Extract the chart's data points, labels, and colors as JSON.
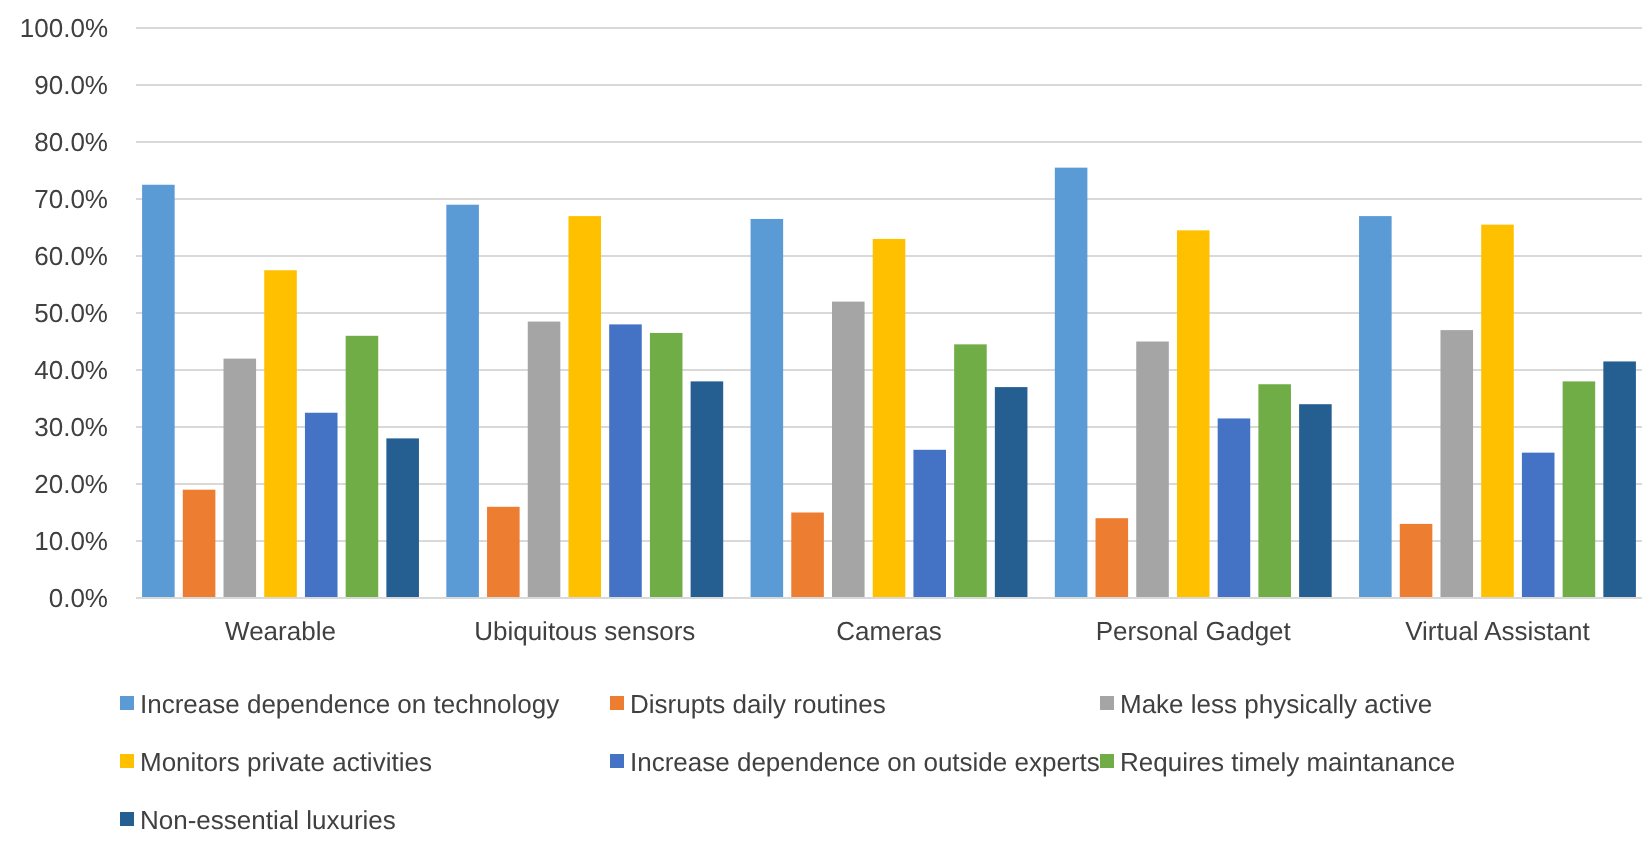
{
  "chart_data": {
    "type": "bar",
    "categories": [
      "Wearable",
      "Ubiquitous sensors",
      "Cameras",
      "Personal Gadget",
      "Virtual Assistant"
    ],
    "series": [
      {
        "name": "Increase dependence on technology",
        "color": "#5b9bd5",
        "values": [
          72.5,
          69,
          66.5,
          75.5,
          67
        ]
      },
      {
        "name": "Disrupts daily routines",
        "color": "#ed7d31",
        "values": [
          19,
          16,
          15,
          14,
          13
        ]
      },
      {
        "name": "Make less physically active",
        "color": "#a5a5a5",
        "values": [
          42,
          48.5,
          52,
          45,
          47
        ]
      },
      {
        "name": "Monitors private activities",
        "color": "#ffc000",
        "values": [
          57.5,
          67,
          63,
          64.5,
          65.5
        ]
      },
      {
        "name": "Increase dependence on outside experts",
        "color": "#4472c4",
        "values": [
          32.5,
          48,
          26,
          31.5,
          25.5
        ]
      },
      {
        "name": "Requires timely maintanance",
        "color": "#70ad47",
        "values": [
          46,
          46.5,
          44.5,
          37.5,
          38
        ]
      },
      {
        "name": "Non-essential luxuries",
        "color": "#255e91",
        "values": [
          28,
          38,
          37,
          34,
          41.5
        ]
      }
    ],
    "ylim": [
      0,
      100
    ],
    "yticks": [
      {
        "value": 0,
        "label": "0.0%"
      },
      {
        "value": 10,
        "label": "10.0%"
      },
      {
        "value": 20,
        "label": "20.0%"
      },
      {
        "value": 30,
        "label": "30.0%"
      },
      {
        "value": 40,
        "label": "40.0%"
      },
      {
        "value": 50,
        "label": "50.0%"
      },
      {
        "value": 60,
        "label": "60.0%"
      },
      {
        "value": 70,
        "label": "70.0%"
      },
      {
        "value": 80,
        "label": "80.0%"
      },
      {
        "value": 90,
        "label": "90.0%"
      },
      {
        "value": 100,
        "label": "100.0%"
      }
    ],
    "grid": "y",
    "legend": "bottom"
  }
}
